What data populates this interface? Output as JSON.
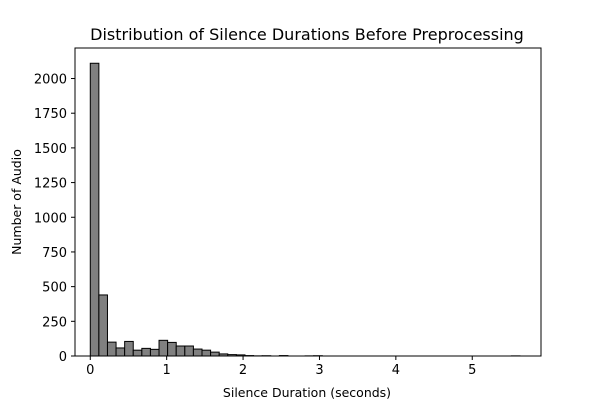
{
  "chart_data": {
    "type": "bar",
    "title": "Distribution of Silence Durations Before Preprocessing",
    "xlabel": "Silence Duration (seconds)",
    "ylabel": "Number of Audio",
    "xlim": [
      -0.2,
      5.9
    ],
    "ylim": [
      0,
      2220
    ],
    "xticks": [
      0,
      1,
      2,
      3,
      4,
      5
    ],
    "yticks": [
      0,
      250,
      500,
      750,
      1000,
      1250,
      1500,
      1750,
      2000
    ],
    "bin_width": 0.1125,
    "bar_fill": "#808080",
    "bar_edge": "#000000",
    "bins": [
      {
        "x": 0.0,
        "count": 2110
      },
      {
        "x": 0.1125,
        "count": 440
      },
      {
        "x": 0.225,
        "count": 100
      },
      {
        "x": 0.3375,
        "count": 58
      },
      {
        "x": 0.45,
        "count": 105
      },
      {
        "x": 0.5625,
        "count": 42
      },
      {
        "x": 0.675,
        "count": 55
      },
      {
        "x": 0.7875,
        "count": 48
      },
      {
        "x": 0.9,
        "count": 113
      },
      {
        "x": 1.0125,
        "count": 98
      },
      {
        "x": 1.125,
        "count": 72
      },
      {
        "x": 1.2375,
        "count": 72
      },
      {
        "x": 1.35,
        "count": 50
      },
      {
        "x": 1.4625,
        "count": 42
      },
      {
        "x": 1.575,
        "count": 28
      },
      {
        "x": 1.6875,
        "count": 15
      },
      {
        "x": 1.8,
        "count": 10
      },
      {
        "x": 1.9125,
        "count": 8
      },
      {
        "x": 2.025,
        "count": 3
      },
      {
        "x": 2.1375,
        "count": 1
      },
      {
        "x": 2.25,
        "count": 2
      },
      {
        "x": 2.3625,
        "count": 0
      },
      {
        "x": 2.475,
        "count": 3
      },
      {
        "x": 2.5875,
        "count": 0
      },
      {
        "x": 2.7,
        "count": 0
      },
      {
        "x": 2.8125,
        "count": 1
      },
      {
        "x": 2.925,
        "count": 2
      },
      {
        "x": 3.0375,
        "count": 0
      },
      {
        "x": 3.15,
        "count": 0
      },
      {
        "x": 3.2625,
        "count": 0
      },
      {
        "x": 3.375,
        "count": 0
      },
      {
        "x": 3.4875,
        "count": 0
      },
      {
        "x": 3.6,
        "count": 0
      },
      {
        "x": 3.7125,
        "count": 0
      },
      {
        "x": 3.825,
        "count": 0
      },
      {
        "x": 3.9375,
        "count": 0
      },
      {
        "x": 4.05,
        "count": 0
      },
      {
        "x": 4.1625,
        "count": 0
      },
      {
        "x": 4.275,
        "count": 0
      },
      {
        "x": 4.3875,
        "count": 0
      },
      {
        "x": 4.5,
        "count": 0
      },
      {
        "x": 4.6125,
        "count": 0
      },
      {
        "x": 4.725,
        "count": 0
      },
      {
        "x": 4.8375,
        "count": 0
      },
      {
        "x": 4.95,
        "count": 0
      },
      {
        "x": 5.0625,
        "count": 0
      },
      {
        "x": 5.175,
        "count": 0
      },
      {
        "x": 5.2875,
        "count": 0
      },
      {
        "x": 5.4,
        "count": 0
      },
      {
        "x": 5.5125,
        "count": 1
      }
    ]
  }
}
